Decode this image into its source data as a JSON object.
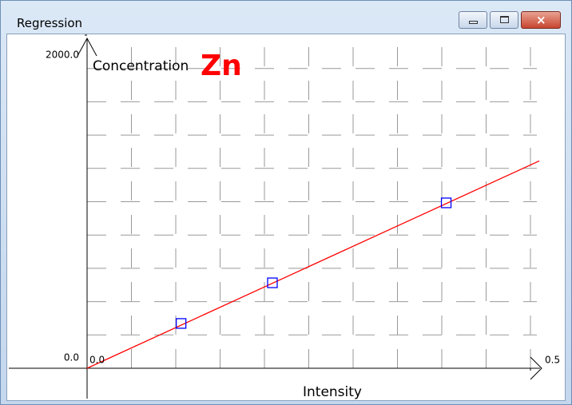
{
  "window": {
    "title": "Regression"
  },
  "chart_data": {
    "type": "scatter",
    "title": "Zn",
    "x_label": "Intensity",
    "y_label": "Concentration",
    "xlim": [
      0,
      0.5
    ],
    "ylim": [
      0,
      2000
    ],
    "xticks": [
      {
        "value": 0,
        "label": "0.0"
      },
      {
        "value": 0.5,
        "label": "0.5"
      }
    ],
    "yticks": [
      {
        "value": 0,
        "label": "0.0"
      },
      {
        "value": 2000,
        "label": "2000.0"
      }
    ],
    "xgrid": [
      0.05,
      0.1,
      0.15,
      0.2,
      0.25,
      0.3,
      0.35,
      0.4,
      0.45,
      0.5
    ],
    "ygrid": [
      200,
      400,
      600,
      800,
      1000,
      1200,
      1400,
      1600,
      1800
    ],
    "grid": true,
    "series": [
      {
        "type": "scatter",
        "color": "#0000ff",
        "x": [
          0.106,
          0.209,
          0.405
        ],
        "values": [
          269,
          513,
          993
        ]
      },
      {
        "type": "line",
        "color": "#ff0000",
        "x": [
          0,
          0.51
        ],
        "values": [
          0,
          1245
        ]
      }
    ]
  }
}
